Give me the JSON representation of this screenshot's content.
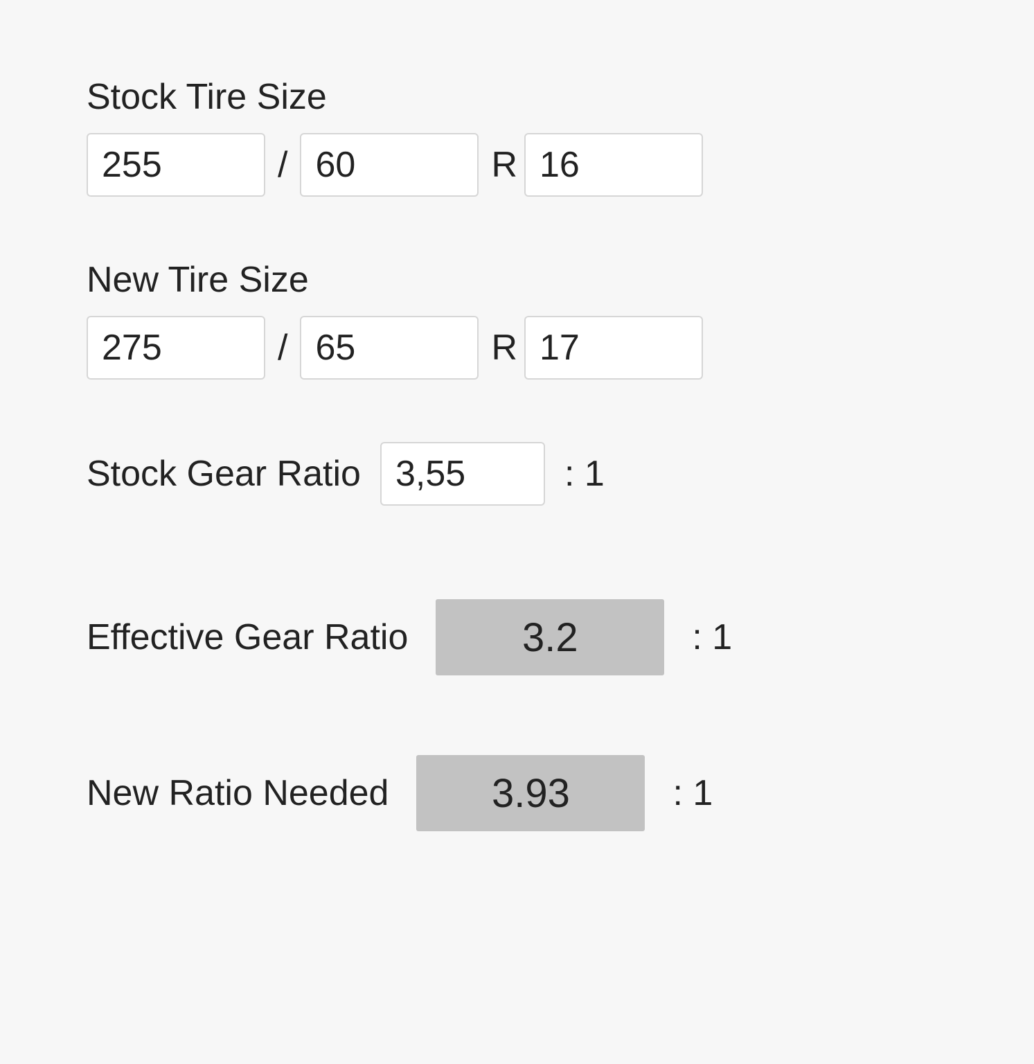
{
  "colors": {
    "page_bg": "#f7f7f7",
    "text": "#222222",
    "input_bg": "#ffffff",
    "input_border": "#d6d6d6",
    "result_bg": "#c2c2c2"
  },
  "typography": {
    "font_family": "Helvetica Neue, Helvetica, Arial, sans-serif",
    "label_size_pt": 39,
    "input_size_pt": 39,
    "result_size_pt": 44
  },
  "stock_tire": {
    "title": "Stock Tire Size",
    "width": "255",
    "aspect": "60",
    "rim": "16",
    "sep_slash": "/",
    "sep_r": "R"
  },
  "new_tire": {
    "title": "New Tire Size",
    "width": "275",
    "aspect": "65",
    "rim": "17",
    "sep_slash": "/",
    "sep_r": "R"
  },
  "stock_ratio": {
    "label": "Stock Gear Ratio",
    "value": "3,55",
    "suffix": ": 1"
  },
  "effective_ratio": {
    "label": "Effective Gear Ratio",
    "value": "3.2",
    "suffix": ": 1"
  },
  "new_ratio": {
    "label": "New Ratio Needed",
    "value": "3.93",
    "suffix": ": 1"
  }
}
